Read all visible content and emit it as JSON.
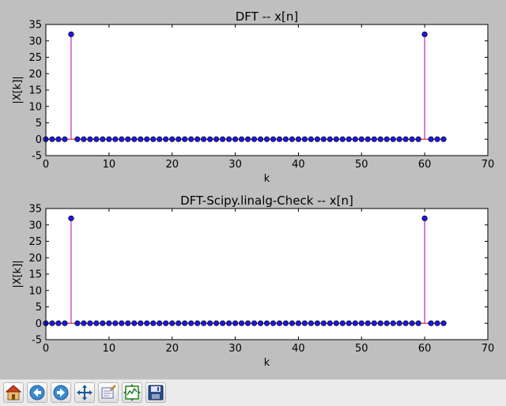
{
  "chart_data": [
    {
      "type": "stem",
      "title": "DFT -- x[n]",
      "xlabel": "k",
      "ylabel": "|X[k]|",
      "xlim": [
        0,
        70
      ],
      "ylim": [
        -5,
        35
      ],
      "xticks": [
        0,
        10,
        20,
        30,
        40,
        50,
        60,
        70
      ],
      "yticks": [
        -5,
        0,
        5,
        10,
        15,
        20,
        25,
        30,
        35
      ],
      "x": [
        0,
        1,
        2,
        3,
        4,
        5,
        6,
        7,
        8,
        9,
        10,
        11,
        12,
        13,
        14,
        15,
        16,
        17,
        18,
        19,
        20,
        21,
        22,
        23,
        24,
        25,
        26,
        27,
        28,
        29,
        30,
        31,
        32,
        33,
        34,
        35,
        36,
        37,
        38,
        39,
        40,
        41,
        42,
        43,
        44,
        45,
        46,
        47,
        48,
        49,
        50,
        51,
        52,
        53,
        54,
        55,
        56,
        57,
        58,
        59,
        60,
        61,
        62,
        63
      ],
      "values": [
        0,
        0,
        0,
        0,
        32,
        0,
        0,
        0,
        0,
        0,
        0,
        0,
        0,
        0,
        0,
        0,
        0,
        0,
        0,
        0,
        0,
        0,
        0,
        0,
        0,
        0,
        0,
        0,
        0,
        0,
        0,
        0,
        0,
        0,
        0,
        0,
        0,
        0,
        0,
        0,
        0,
        0,
        0,
        0,
        0,
        0,
        0,
        0,
        0,
        0,
        0,
        0,
        0,
        0,
        0,
        0,
        0,
        0,
        0,
        0,
        32,
        0,
        0,
        0
      ],
      "colors": {
        "marker": "#1a1adc",
        "stem": "#b000b0",
        "baseline": "#d00000"
      }
    },
    {
      "type": "stem",
      "title": "DFT-Scipy.linalg-Check  --  x[n]",
      "xlabel": "k",
      "ylabel": "|X[k]|",
      "xlim": [
        0,
        70
      ],
      "ylim": [
        -5,
        35
      ],
      "xticks": [
        0,
        10,
        20,
        30,
        40,
        50,
        60,
        70
      ],
      "yticks": [
        -5,
        0,
        5,
        10,
        15,
        20,
        25,
        30,
        35
      ],
      "x": [
        0,
        1,
        2,
        3,
        4,
        5,
        6,
        7,
        8,
        9,
        10,
        11,
        12,
        13,
        14,
        15,
        16,
        17,
        18,
        19,
        20,
        21,
        22,
        23,
        24,
        25,
        26,
        27,
        28,
        29,
        30,
        31,
        32,
        33,
        34,
        35,
        36,
        37,
        38,
        39,
        40,
        41,
        42,
        43,
        44,
        45,
        46,
        47,
        48,
        49,
        50,
        51,
        52,
        53,
        54,
        55,
        56,
        57,
        58,
        59,
        60,
        61,
        62,
        63
      ],
      "values": [
        0,
        0,
        0,
        0,
        32,
        0,
        0,
        0,
        0,
        0,
        0,
        0,
        0,
        0,
        0,
        0,
        0,
        0,
        0,
        0,
        0,
        0,
        0,
        0,
        0,
        0,
        0,
        0,
        0,
        0,
        0,
        0,
        0,
        0,
        0,
        0,
        0,
        0,
        0,
        0,
        0,
        0,
        0,
        0,
        0,
        0,
        0,
        0,
        0,
        0,
        0,
        0,
        0,
        0,
        0,
        0,
        0,
        0,
        0,
        0,
        32,
        0,
        0,
        0
      ],
      "colors": {
        "marker": "#1a1adc",
        "stem": "#b000b0",
        "baseline": "#d00000"
      }
    }
  ],
  "toolbar": {
    "buttons": [
      {
        "icon": "home-icon"
      },
      {
        "icon": "back-arrow-icon"
      },
      {
        "icon": "forward-arrow-icon"
      },
      {
        "icon": "pan-move-icon"
      },
      {
        "icon": "zoom-rect-icon"
      },
      {
        "icon": "subplots-config-icon"
      },
      {
        "icon": "save-floppy-icon"
      }
    ]
  }
}
